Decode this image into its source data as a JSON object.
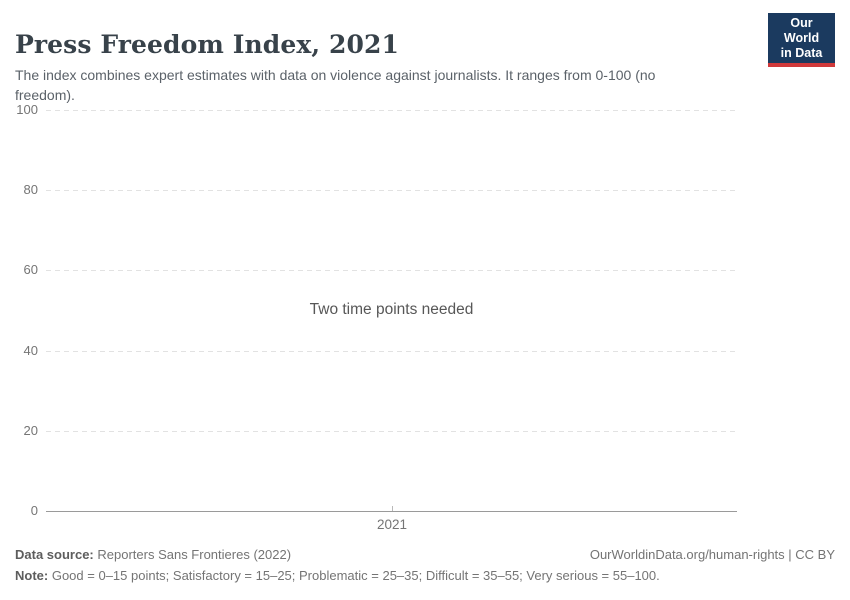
{
  "header": {
    "title": "Press Freedom Index, 2021",
    "subtitle": "The index combines expert estimates with data on violence against journalists. It ranges from 0-100 (no freedom)."
  },
  "logo": {
    "line1": "Our World",
    "line2": "in Data",
    "bg_color": "#1b3a5f",
    "accent_color": "#d0393b"
  },
  "chart_data": {
    "type": "line",
    "title": "Press Freedom Index, 2021",
    "message": "Two time points needed",
    "series": [],
    "x": [
      2021
    ],
    "x_tick_labels": [
      "2021"
    ],
    "y_ticks": [
      0,
      20,
      40,
      60,
      80,
      100
    ],
    "ylim": [
      0,
      100
    ],
    "grid": true,
    "legend_position": "none"
  },
  "footer": {
    "data_source_label": "Data source:",
    "data_source_value": "Reporters Sans Frontieres (2022)",
    "link": "OurWorldinData.org/human-rights | CC BY",
    "note_label": "Note:",
    "note_value": "Good = 0–15 points; Satisfactory = 15–25; Problematic = 25–35; Difficult = 35–55; Very serious = 55–100."
  }
}
